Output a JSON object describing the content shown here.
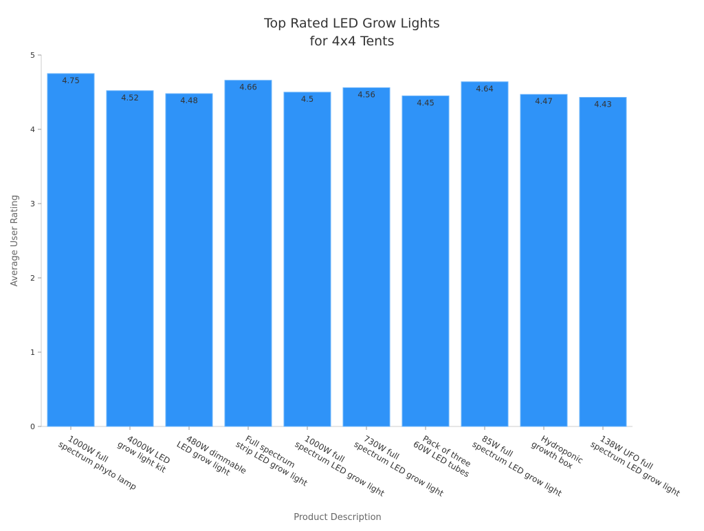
{
  "chart_data": {
    "type": "bar",
    "title": [
      "Top Rated LED Grow Lights",
      "for 4x4 Tents"
    ],
    "xlabel": "Product Description",
    "ylabel": "Average User Rating",
    "ylim": [
      0,
      5
    ],
    "yticks": [
      0,
      1,
      2,
      3,
      4,
      5
    ],
    "grid": false,
    "bar_color": "#2f93f8",
    "categories": [
      [
        "1000W full",
        "spectrum phyto lamp"
      ],
      [
        "4000W LED",
        "grow light kit"
      ],
      [
        "480W dimmable",
        "LED grow light"
      ],
      [
        "Full spectrum",
        "strip LED grow light"
      ],
      [
        "1000W full",
        "spectrum LED grow light"
      ],
      [
        "730W full",
        "spectrum LED grow light"
      ],
      [
        "Pack of three",
        "60W LED tubes"
      ],
      [
        "85W full",
        "spectrum LED grow light"
      ],
      [
        "Hydroponic",
        "growth box"
      ],
      [
        "138W UFO full",
        "spectrum LED grow light"
      ]
    ],
    "values": [
      4.75,
      4.52,
      4.48,
      4.66,
      4.5,
      4.56,
      4.45,
      4.64,
      4.47,
      4.43
    ],
    "data_labels": [
      "4.75",
      "4.52",
      "4.48",
      "4.66",
      "4.5",
      "4.56",
      "4.45",
      "4.64",
      "4.47",
      "4.43"
    ]
  }
}
